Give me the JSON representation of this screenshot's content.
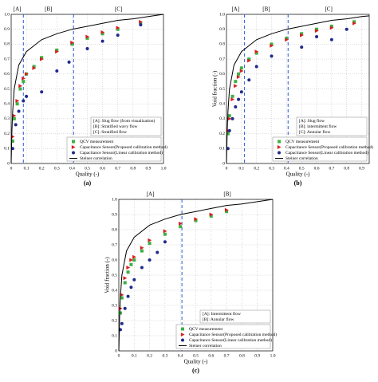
{
  "chart_data": [
    {
      "type": "scatter",
      "panel_label": "(a)",
      "x_label": "Quality (-)",
      "xlim": [
        0,
        1
      ],
      "ylim": [
        0,
        1
      ],
      "xticks": [
        0,
        0.1,
        0.2,
        0.3,
        0.4,
        0.5,
        0.6,
        0.7,
        0.8,
        0.9,
        {
          "value": 1,
          "label": "1.0"
        }
      ],
      "yticks": [
        0,
        0.1,
        0.2,
        0.3,
        0.4,
        0.5,
        0.6,
        0.7,
        0.8,
        0.9,
        {
          "value": 1,
          "label": "1.0"
        }
      ],
      "grid": true,
      "region_bounds": [
        0.08,
        0.41
      ],
      "region_color": "#2a5bd7",
      "regions": [
        "[A]",
        "[B]",
        "[C]"
      ],
      "region_legend": [
        "[A]: Slug flow (from visualization)",
        "[B]: Stratified wavy flow",
        "[C]: Stratified flow"
      ],
      "series": [
        {
          "name": "QCV measurement",
          "marker": "square",
          "color": "#3cb043",
          "x": [
            0.01,
            0.02,
            0.04,
            0.06,
            0.08,
            0.1,
            0.15,
            0.2,
            0.3,
            0.4,
            0.5,
            0.6,
            0.7,
            0.85
          ],
          "values": [
            0.15,
            0.3,
            0.4,
            0.5,
            0.55,
            0.6,
            0.65,
            0.71,
            0.76,
            0.8,
            0.84,
            0.87,
            0.9,
            0.94
          ]
        },
        {
          "name": "Capacitance Sensor(Proposed calibration method)",
          "marker": "triangle",
          "color": "#d62020",
          "x": [
            0.01,
            0.02,
            0.04,
            0.06,
            0.08,
            0.1,
            0.15,
            0.2,
            0.3,
            0.4,
            0.5,
            0.6,
            0.7,
            0.85
          ],
          "values": [
            0.18,
            0.32,
            0.42,
            0.52,
            0.57,
            0.6,
            0.64,
            0.7,
            0.75,
            0.81,
            0.85,
            0.88,
            0.91,
            0.95
          ]
        },
        {
          "name": "Capacitance Sensor(Linear calibration method)",
          "marker": "circle",
          "color": "#1f2a8a",
          "x": [
            0.01,
            0.03,
            0.05,
            0.08,
            0.1,
            0.2,
            0.3,
            0.38,
            0.5,
            0.6,
            0.7,
            0.85
          ],
          "values": [
            0.1,
            0.26,
            0.35,
            0.42,
            0.45,
            0.48,
            0.62,
            0.68,
            0.77,
            0.82,
            0.86,
            0.93
          ]
        },
        {
          "name": "Steiner correlation",
          "marker": "line",
          "color": "#000000",
          "x": [
            0,
            0.005,
            0.01,
            0.02,
            0.05,
            0.1,
            0.2,
            0.3,
            0.4,
            0.5,
            0.6,
            0.7,
            0.8,
            0.9,
            1
          ],
          "values": [
            0,
            0.22,
            0.35,
            0.5,
            0.66,
            0.75,
            0.83,
            0.87,
            0.9,
            0.92,
            0.94,
            0.96,
            0.97,
            0.985,
            1
          ]
        }
      ]
    },
    {
      "type": "scatter",
      "panel_label": "(b)",
      "x_label": "Quality (-)",
      "y_label": "Void fraction (-)",
      "xlim": [
        0,
        0.95
      ],
      "ylim": [
        0,
        1
      ],
      "xticks": [
        0,
        0.1,
        0.2,
        0.3,
        0.4,
        0.5,
        0.6,
        0.7,
        0.8,
        0.9
      ],
      "yticks": [
        0,
        0.1,
        0.2,
        0.3,
        0.4,
        0.5,
        0.6,
        0.7,
        0.8,
        0.9,
        {
          "value": 1,
          "label": "1.0"
        }
      ],
      "grid": true,
      "region_bounds": [
        0.12,
        0.41
      ],
      "region_color": "#2a5bd7",
      "regions": [
        "[A]",
        "[B]",
        "[C]"
      ],
      "region_legend": [
        "[A]: Slug flow",
        "[B]: intermittent flow",
        "[C]: Annular flow"
      ],
      "series": [
        {
          "name": "QCV measurement",
          "marker": "square",
          "color": "#3cb043",
          "x": [
            0.01,
            0.02,
            0.04,
            0.06,
            0.08,
            0.1,
            0.15,
            0.2,
            0.3,
            0.4,
            0.5,
            0.6,
            0.7,
            0.85
          ],
          "values": [
            0.2,
            0.32,
            0.45,
            0.55,
            0.6,
            0.64,
            0.7,
            0.74,
            0.8,
            0.84,
            0.87,
            0.9,
            0.92,
            0.95
          ]
        },
        {
          "name": "Capacitance Sensor(Proposed calibration method)",
          "marker": "triangle",
          "color": "#d62020",
          "x": [
            0.01,
            0.02,
            0.04,
            0.06,
            0.08,
            0.1,
            0.15,
            0.2,
            0.3,
            0.4,
            0.5,
            0.6,
            0.7,
            0.85
          ],
          "values": [
            0.22,
            0.3,
            0.43,
            0.52,
            0.58,
            0.62,
            0.69,
            0.75,
            0.79,
            0.83,
            0.86,
            0.89,
            0.91,
            0.94
          ]
        },
        {
          "name": "Capacitance Sensor(Linear calibration method)",
          "marker": "circle",
          "color": "#1f2a8a",
          "x": [
            0.01,
            0.02,
            0.04,
            0.06,
            0.08,
            0.1,
            0.15,
            0.2,
            0.3,
            0.5,
            0.6,
            0.7,
            0.8
          ],
          "values": [
            0.1,
            0.22,
            0.3,
            0.38,
            0.43,
            0.48,
            0.56,
            0.65,
            0.72,
            0.78,
            0.85,
            0.83,
            0.9
          ]
        },
        {
          "name": "Steiner correlation",
          "marker": "line",
          "color": "#000000",
          "x": [
            0,
            0.005,
            0.01,
            0.02,
            0.05,
            0.1,
            0.2,
            0.3,
            0.4,
            0.5,
            0.6,
            0.7,
            0.8,
            0.9,
            0.95
          ],
          "values": [
            0,
            0.22,
            0.35,
            0.5,
            0.66,
            0.75,
            0.83,
            0.87,
            0.9,
            0.92,
            0.94,
            0.96,
            0.97,
            0.985,
            0.99
          ]
        }
      ]
    },
    {
      "type": "scatter",
      "panel_label": "(c)",
      "x_label": "Quality (-)",
      "y_label": "Void fraction (-)",
      "xlim": [
        0,
        1
      ],
      "ylim": [
        0,
        1
      ],
      "xticks": [
        0,
        0.1,
        0.2,
        0.3,
        0.4,
        0.5,
        0.6,
        0.7,
        0.8,
        0.9,
        {
          "value": 1,
          "label": "1.0"
        }
      ],
      "yticks": [
        0,
        0.1,
        0.2,
        0.3,
        0.4,
        0.5,
        0.6,
        0.7,
        0.8,
        0.9,
        {
          "value": 1,
          "label": "1.0"
        }
      ],
      "grid": true,
      "region_bounds": [
        0.41
      ],
      "region_color": "#2a5bd7",
      "regions": [
        "[A]",
        "[B]"
      ],
      "region_legend": [
        "[A]: Intermittent flow",
        "[B]: Annular flow"
      ],
      "series": [
        {
          "name": "QCV measurement",
          "marker": "square",
          "color": "#3cb043",
          "x": [
            0.01,
            0.02,
            0.04,
            0.06,
            0.08,
            0.1,
            0.15,
            0.2,
            0.3,
            0.4,
            0.5,
            0.6,
            0.7
          ],
          "values": [
            0.25,
            0.35,
            0.45,
            0.52,
            0.57,
            0.6,
            0.66,
            0.71,
            0.77,
            0.82,
            0.86,
            0.89,
            0.92
          ]
        },
        {
          "name": "Capacitance Sensor(Proposed calibration method)",
          "marker": "triangle",
          "color": "#d62020",
          "x": [
            0.01,
            0.02,
            0.04,
            0.06,
            0.08,
            0.1,
            0.15,
            0.2,
            0.3,
            0.4,
            0.5,
            0.6,
            0.7
          ],
          "values": [
            0.28,
            0.37,
            0.48,
            0.55,
            0.6,
            0.62,
            0.68,
            0.73,
            0.79,
            0.84,
            0.87,
            0.9,
            0.93
          ]
        },
        {
          "name": "Capacitance Sensor(Linear calibration method)",
          "marker": "circle",
          "color": "#1f2a8a",
          "x": [
            0.01,
            0.02,
            0.04,
            0.06,
            0.08,
            0.1,
            0.15,
            0.2,
            0.25,
            0.3
          ],
          "values": [
            0.14,
            0.18,
            0.28,
            0.36,
            0.42,
            0.47,
            0.55,
            0.6,
            0.65,
            0.72
          ]
        },
        {
          "name": "Steiner correlation",
          "marker": "line",
          "color": "#000000",
          "x": [
            0,
            0.005,
            0.01,
            0.02,
            0.05,
            0.1,
            0.2,
            0.3,
            0.4,
            0.5,
            0.6,
            0.7,
            0.8,
            0.9,
            1
          ],
          "values": [
            0,
            0.22,
            0.35,
            0.5,
            0.66,
            0.75,
            0.83,
            0.87,
            0.9,
            0.92,
            0.94,
            0.96,
            0.97,
            0.985,
            1
          ]
        }
      ]
    }
  ]
}
